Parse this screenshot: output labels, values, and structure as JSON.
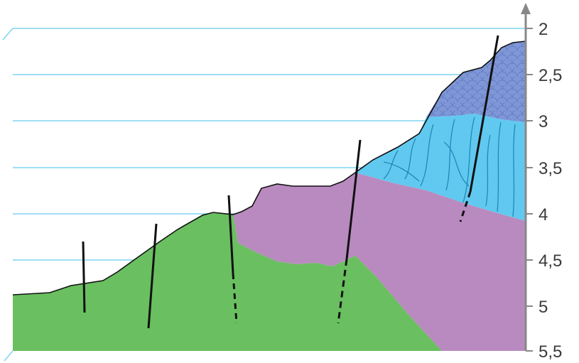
{
  "axis": {
    "tick_labels": [
      "2",
      "2,5",
      "3",
      "3,5",
      "4",
      "4,5",
      "5",
      "5,5"
    ]
  },
  "colors": {
    "background": "#ffffff",
    "gridline": "#7fd3f0",
    "axis": "#888888",
    "green_layer": "#6abf60",
    "purple_layer": "#b98abf",
    "light_blue_layer": "#61c9f0",
    "dark_blue_layer": "#7f97d6",
    "outline": "#111111"
  },
  "layers": [
    {
      "id": "green",
      "icon": "green-layer"
    },
    {
      "id": "purple",
      "icon": "purple-layer"
    },
    {
      "id": "light_blue",
      "icon": "light-blue-layer-with-cracks"
    },
    {
      "id": "dark_blue",
      "icon": "dark-blue-layer-scale-pattern"
    }
  ],
  "faults_count": 5
}
